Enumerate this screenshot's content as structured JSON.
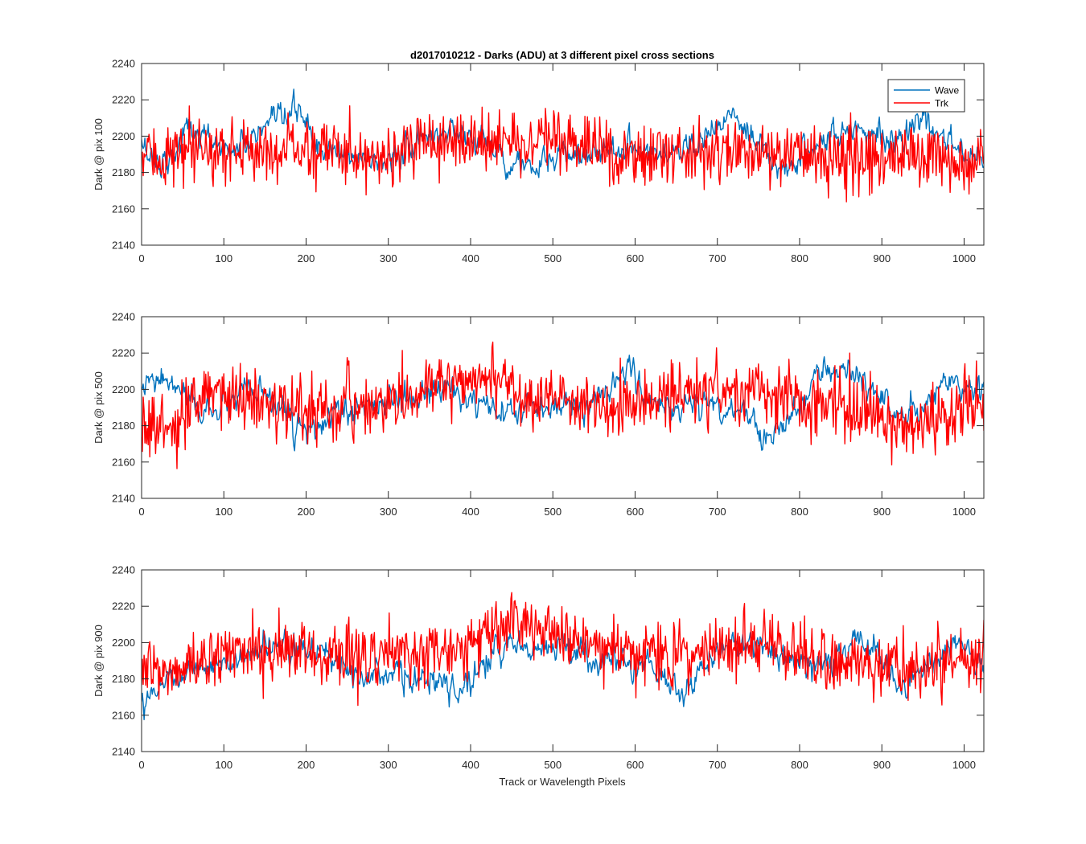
{
  "figure": {
    "title": "d2017010212 - Darks (ADU) at 3 different pixel cross sections",
    "xlabel": "Track or Wavelength Pixels"
  },
  "legend": {
    "placement": "top-right",
    "entries": [
      {
        "name": "Wave",
        "color": "#0072BD"
      },
      {
        "name": "Trk",
        "color": "#FF0000"
      }
    ]
  },
  "chart_data": [
    {
      "type": "line",
      "ylabel": "Dark @ pix 100",
      "xlim": [
        0,
        1024
      ],
      "ylim": [
        2140,
        2240
      ],
      "xticks": [
        0,
        100,
        200,
        300,
        400,
        500,
        600,
        700,
        800,
        900,
        1000
      ],
      "yticks": [
        2140,
        2160,
        2180,
        2200,
        2220,
        2240
      ],
      "grid": false,
      "series": [
        {
          "name": "Wave",
          "color": "#0072BD",
          "anchors": [
            [
              0,
              2195
            ],
            [
              20,
              2185
            ],
            [
              40,
              2190
            ],
            [
              55,
              2205
            ],
            [
              80,
              2198
            ],
            [
              110,
              2192
            ],
            [
              140,
              2200
            ],
            [
              170,
              2208
            ],
            [
              195,
              2215
            ],
            [
              215,
              2192
            ],
            [
              260,
              2188
            ],
            [
              300,
              2186
            ],
            [
              340,
              2198
            ],
            [
              380,
              2204
            ],
            [
              420,
              2196
            ],
            [
              450,
              2186
            ],
            [
              480,
              2182
            ],
            [
              520,
              2190
            ],
            [
              560,
              2192
            ],
            [
              600,
              2195
            ],
            [
              640,
              2190
            ],
            [
              680,
              2200
            ],
            [
              720,
              2210
            ],
            [
              745,
              2196
            ],
            [
              775,
              2180
            ],
            [
              800,
              2190
            ],
            [
              840,
              2200
            ],
            [
              880,
              2205
            ],
            [
              920,
              2198
            ],
            [
              950,
              2208
            ],
            [
              980,
              2196
            ],
            [
              1024,
              2190
            ]
          ]
        },
        {
          "name": "Trk",
          "color": "#FF0000",
          "anchors": [
            [
              0,
              2188
            ],
            [
              100,
              2192
            ],
            [
              200,
              2193
            ],
            [
              300,
              2190
            ],
            [
              400,
              2198
            ],
            [
              500,
              2196
            ],
            [
              600,
              2190
            ],
            [
              700,
              2192
            ],
            [
              800,
              2190
            ],
            [
              900,
              2188
            ],
            [
              1000,
              2186
            ],
            [
              1024,
              2188
            ]
          ]
        }
      ]
    },
    {
      "type": "line",
      "ylabel": "Dark @ pix 500",
      "xlim": [
        0,
        1024
      ],
      "ylim": [
        2140,
        2240
      ],
      "xticks": [
        0,
        100,
        200,
        300,
        400,
        500,
        600,
        700,
        800,
        900,
        1000
      ],
      "yticks": [
        2140,
        2160,
        2180,
        2200,
        2220,
        2240
      ],
      "grid": false,
      "series": [
        {
          "name": "Wave",
          "color": "#0072BD",
          "anchors": [
            [
              0,
              2200
            ],
            [
              25,
              2205
            ],
            [
              45,
              2200
            ],
            [
              70,
              2188
            ],
            [
              100,
              2190
            ],
            [
              130,
              2198
            ],
            [
              165,
              2192
            ],
            [
              200,
              2175
            ],
            [
              240,
              2186
            ],
            [
              290,
              2192
            ],
            [
              340,
              2196
            ],
            [
              380,
              2200
            ],
            [
              410,
              2188
            ],
            [
              440,
              2186
            ],
            [
              480,
              2190
            ],
            [
              520,
              2192
            ],
            [
              560,
              2194
            ],
            [
              590,
              2215
            ],
            [
              610,
              2196
            ],
            [
              640,
              2190
            ],
            [
              690,
              2192
            ],
            [
              730,
              2188
            ],
            [
              760,
              2175
            ],
            [
              790,
              2182
            ],
            [
              820,
              2208
            ],
            [
              860,
              2212
            ],
            [
              890,
              2200
            ],
            [
              920,
              2184
            ],
            [
              950,
              2190
            ],
            [
              980,
              2205
            ],
            [
              1024,
              2198
            ]
          ]
        },
        {
          "name": "Trk",
          "color": "#FF0000",
          "anchors": [
            [
              0,
              2180
            ],
            [
              40,
              2178
            ],
            [
              90,
              2200
            ],
            [
              150,
              2192
            ],
            [
              200,
              2188
            ],
            [
              260,
              2190
            ],
            [
              320,
              2194
            ],
            [
              380,
              2205
            ],
            [
              420,
              2208
            ],
            [
              460,
              2200
            ],
            [
              500,
              2192
            ],
            [
              560,
              2190
            ],
            [
              620,
              2194
            ],
            [
              680,
              2200
            ],
            [
              740,
              2198
            ],
            [
              800,
              2192
            ],
            [
              860,
              2190
            ],
            [
              900,
              2188
            ],
            [
              930,
              2176
            ],
            [
              960,
              2186
            ],
            [
              1024,
              2190
            ]
          ]
        }
      ]
    },
    {
      "type": "line",
      "ylabel": "Dark @ pix 900",
      "xlim": [
        0,
        1024
      ],
      "ylim": [
        2140,
        2240
      ],
      "xticks": [
        0,
        100,
        200,
        300,
        400,
        500,
        600,
        700,
        800,
        900,
        1000
      ],
      "yticks": [
        2140,
        2160,
        2180,
        2200,
        2220,
        2240
      ],
      "grid": false,
      "series": [
        {
          "name": "Wave",
          "color": "#0072BD",
          "anchors": [
            [
              0,
              2170
            ],
            [
              30,
              2180
            ],
            [
              60,
              2186
            ],
            [
              100,
              2188
            ],
            [
              150,
              2196
            ],
            [
              190,
              2198
            ],
            [
              250,
              2188
            ],
            [
              300,
              2182
            ],
            [
              350,
              2178
            ],
            [
              385,
              2172
            ],
            [
              420,
              2192
            ],
            [
              460,
              2198
            ],
            [
              500,
              2200
            ],
            [
              550,
              2190
            ],
            [
              610,
              2188
            ],
            [
              660,
              2172
            ],
            [
              700,
              2196
            ],
            [
              740,
              2200
            ],
            [
              790,
              2192
            ],
            [
              840,
              2188
            ],
            [
              870,
              2204
            ],
            [
              900,
              2190
            ],
            [
              925,
              2176
            ],
            [
              960,
              2190
            ],
            [
              1000,
              2198
            ],
            [
              1024,
              2184
            ]
          ]
        },
        {
          "name": "Trk",
          "color": "#FF0000",
          "anchors": [
            [
              0,
              2182
            ],
            [
              40,
              2184
            ],
            [
              100,
              2195
            ],
            [
              200,
              2195
            ],
            [
              300,
              2192
            ],
            [
              400,
              2200
            ],
            [
              460,
              2210
            ],
            [
              500,
              2205
            ],
            [
              560,
              2198
            ],
            [
              640,
              2192
            ],
            [
              700,
              2198
            ],
            [
              760,
              2200
            ],
            [
              820,
              2192
            ],
            [
              880,
              2188
            ],
            [
              940,
              2184
            ],
            [
              1000,
              2190
            ],
            [
              1024,
              2188
            ]
          ]
        }
      ]
    }
  ]
}
